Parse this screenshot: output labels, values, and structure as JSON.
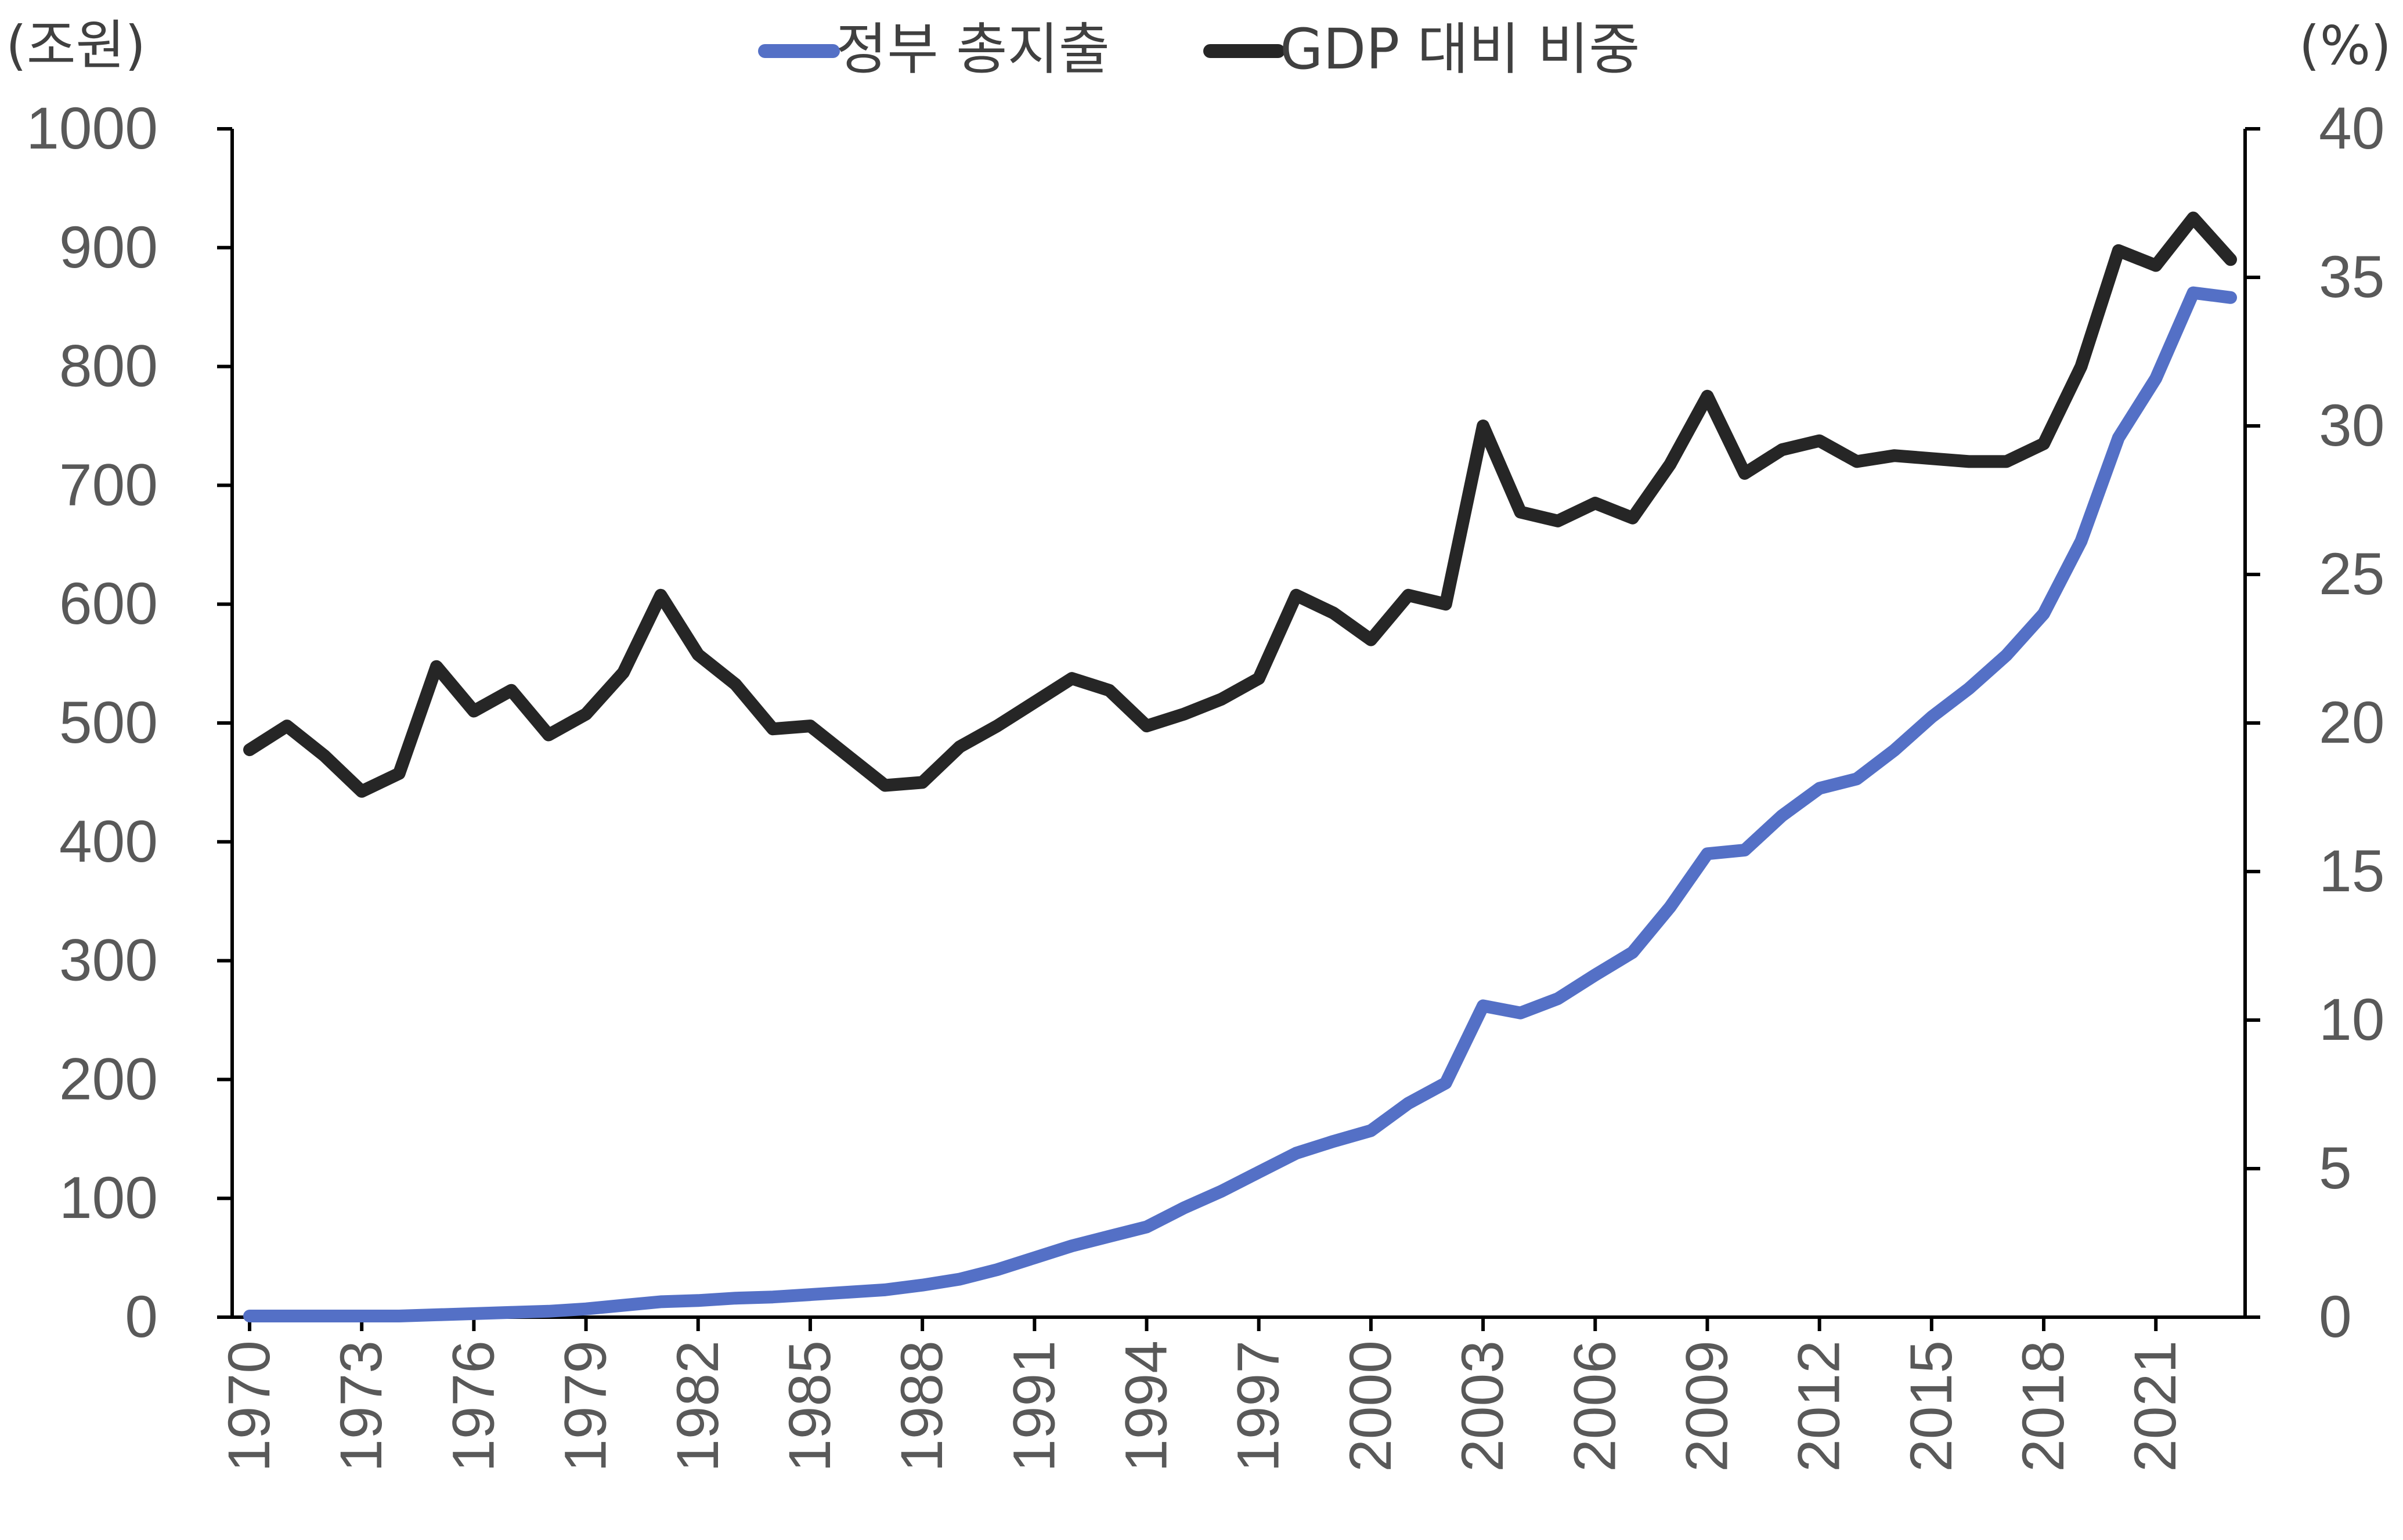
{
  "chart_data": {
    "type": "line",
    "left_axis_unit": "(조원)",
    "right_axis_unit": "(%)",
    "y_left_range": [
      0,
      1000
    ],
    "y_left_ticks": [
      "0",
      "100",
      "200",
      "300",
      "400",
      "500",
      "600",
      "700",
      "800",
      "900",
      "1000"
    ],
    "y_right_range": [
      0,
      40
    ],
    "y_right_ticks": [
      "0",
      "5",
      "10",
      "15",
      "20",
      "25",
      "30",
      "35",
      "40"
    ],
    "x_tick_labels": [
      "1970",
      "1973",
      "1976",
      "1979",
      "1982",
      "1985",
      "1988",
      "1991",
      "1994",
      "1997",
      "2000",
      "2003",
      "2006",
      "2009",
      "2012",
      "2015",
      "2018",
      "2021"
    ],
    "x_start": 1970,
    "x_end": 2023,
    "grid": false,
    "legend_position": "top",
    "series": [
      {
        "name": "정부 총지출",
        "axis": "left",
        "color": "#5470c6",
        "x": [
          1970,
          1971,
          1972,
          1973,
          1974,
          1975,
          1976,
          1977,
          1978,
          1979,
          1980,
          1981,
          1982,
          1983,
          1984,
          1985,
          1986,
          1987,
          1988,
          1989,
          1990,
          1991,
          1992,
          1993,
          1994,
          1995,
          1996,
          1997,
          1998,
          1999,
          2000,
          2001,
          2002,
          2003,
          2004,
          2005,
          2006,
          2007,
          2008,
          2009,
          2010,
          2011,
          2012,
          2013,
          2014,
          2015,
          2016,
          2017,
          2018,
          2019,
          2020,
          2021,
          2022,
          2023
        ],
        "values": [
          1,
          1,
          1,
          1,
          1,
          2,
          3,
          4,
          5,
          7,
          10,
          13,
          14,
          16,
          17,
          19,
          21,
          23,
          27,
          32,
          40,
          50,
          60,
          68,
          76,
          92,
          106,
          122,
          138,
          148,
          157,
          180,
          197,
          262,
          256,
          268,
          288,
          307,
          345,
          390,
          393,
          422,
          445,
          453,
          477,
          505,
          529,
          557,
          592,
          653,
          740,
          790,
          862,
          858
        ]
      },
      {
        "name": "GDP 대비 비중",
        "axis": "right",
        "color": "#262626",
        "x": [
          1970,
          1971,
          1972,
          1973,
          1974,
          1975,
          1976,
          1977,
          1978,
          1979,
          1980,
          1981,
          1982,
          1983,
          1984,
          1985,
          1986,
          1987,
          1988,
          1989,
          1990,
          1991,
          1992,
          1993,
          1994,
          1995,
          1996,
          1997,
          1998,
          1999,
          2000,
          2001,
          2002,
          2003,
          2004,
          2005,
          2006,
          2007,
          2008,
          2009,
          2010,
          2011,
          2012,
          2013,
          2014,
          2015,
          2016,
          2017,
          2018,
          2019,
          2020,
          2021,
          2022,
          2023
        ],
        "values": [
          19.1,
          19.9,
          18.9,
          17.7,
          18.3,
          21.9,
          20.4,
          21.1,
          19.6,
          20.3,
          21.7,
          24.3,
          22.3,
          21.3,
          19.8,
          19.9,
          18.9,
          17.9,
          18.0,
          19.2,
          19.9,
          20.7,
          21.5,
          21.1,
          19.9,
          20.3,
          20.8,
          21.5,
          24.3,
          23.7,
          22.8,
          24.3,
          24.0,
          30.0,
          27.1,
          26.8,
          27.4,
          26.9,
          28.7,
          31.0,
          28.4,
          29.2,
          29.5,
          28.8,
          29.0,
          28.9,
          28.8,
          28.8,
          29.4,
          32.0,
          35.9,
          35.4,
          37.0,
          35.6
        ]
      }
    ]
  }
}
